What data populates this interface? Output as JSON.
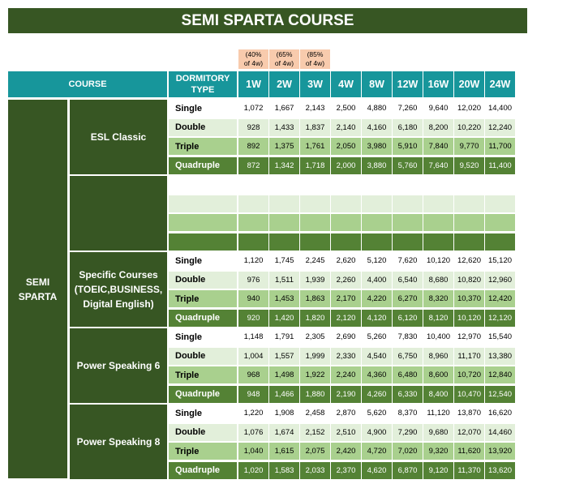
{
  "title": "SEMI SPARTA COURSE",
  "notes": [
    {
      "line1": "(40%",
      "line2": "of 4w)"
    },
    {
      "line1": "(65%",
      "line2": "of 4w)"
    },
    {
      "line1": "(85%",
      "line2": "of 4w)"
    }
  ],
  "header": {
    "course": "COURSE",
    "dormitory_line1": "DORMITORY",
    "dormitory_line2": "TYPE",
    "weeks": [
      "1W",
      "2W",
      "3W",
      "4W",
      "8W",
      "12W",
      "16W",
      "20W",
      "24W"
    ]
  },
  "main_course_line1": "SEMI",
  "main_course_line2": "SPARTA",
  "groups": [
    {
      "name_lines": [
        "ESL Classic"
      ],
      "rows": [
        {
          "type": "Single",
          "prices": [
            "1,072",
            "1,667",
            "2,143",
            "2,500",
            "4,880",
            "7,260",
            "9,640",
            "12,020",
            "14,400"
          ]
        },
        {
          "type": "Double",
          "prices": [
            "928",
            "1,433",
            "1,837",
            "2,140",
            "4,160",
            "6,180",
            "8,200",
            "10,220",
            "12,240"
          ]
        },
        {
          "type": "Triple",
          "prices": [
            "892",
            "1,375",
            "1,761",
            "2,050",
            "3,980",
            "5,910",
            "7,840",
            "9,770",
            "11,700"
          ]
        },
        {
          "type": "Quadruple",
          "prices": [
            "872",
            "1,342",
            "1,718",
            "2,000",
            "3,880",
            "5,760",
            "7,640",
            "9,520",
            "11,400"
          ]
        }
      ]
    },
    {
      "name_lines": [],
      "rows": [
        {
          "type": "",
          "prices": [
            "",
            "",
            "",
            "",
            "",
            "",
            "",
            "",
            ""
          ]
        },
        {
          "type": "",
          "prices": [
            "",
            "",
            "",
            "",
            "",
            "",
            "",
            "",
            ""
          ]
        },
        {
          "type": "",
          "prices": [
            "",
            "",
            "",
            "",
            "",
            "",
            "",
            "",
            ""
          ]
        },
        {
          "type": "",
          "prices": [
            "",
            "",
            "",
            "",
            "",
            "",
            "",
            "",
            ""
          ]
        }
      ]
    },
    {
      "name_lines": [
        "Specific Courses",
        "(TOEIC,BUSINESS,",
        "Digital English)"
      ],
      "rows": [
        {
          "type": "Single",
          "prices": [
            "1,120",
            "1,745",
            "2,245",
            "2,620",
            "5,120",
            "7,620",
            "10,120",
            "12,620",
            "15,120"
          ]
        },
        {
          "type": "Double",
          "prices": [
            "976",
            "1,511",
            "1,939",
            "2,260",
            "4,400",
            "6,540",
            "8,680",
            "10,820",
            "12,960"
          ]
        },
        {
          "type": "Triple",
          "prices": [
            "940",
            "1,453",
            "1,863",
            "2,170",
            "4,220",
            "6,270",
            "8,320",
            "10,370",
            "12,420"
          ]
        },
        {
          "type": "Quadruple",
          "prices": [
            "920",
            "1,420",
            "1,820",
            "2,120",
            "4,120",
            "6,120",
            "8,120",
            "10,120",
            "12,120"
          ]
        }
      ]
    },
    {
      "name_lines": [
        "Power Speaking 6"
      ],
      "rows": [
        {
          "type": "Single",
          "prices": [
            "1,148",
            "1,791",
            "2,305",
            "2,690",
            "5,260",
            "7,830",
            "10,400",
            "12,970",
            "15,540"
          ]
        },
        {
          "type": "Double",
          "prices": [
            "1,004",
            "1,557",
            "1,999",
            "2,330",
            "4,540",
            "6,750",
            "8,960",
            "11,170",
            "13,380"
          ]
        },
        {
          "type": "Triple",
          "prices": [
            "968",
            "1,498",
            "1,922",
            "2,240",
            "4,360",
            "6,480",
            "8,600",
            "10,720",
            "12,840"
          ]
        },
        {
          "type": "Quadruple",
          "prices": [
            "948",
            "1,466",
            "1,880",
            "2,190",
            "4,260",
            "6,330",
            "8,400",
            "10,470",
            "12,540"
          ]
        }
      ]
    },
    {
      "name_lines": [
        "Power Speaking 8"
      ],
      "rows": [
        {
          "type": "Single",
          "prices": [
            "1,220",
            "1,908",
            "2,458",
            "2,870",
            "5,620",
            "8,370",
            "11,120",
            "13,870",
            "16,620"
          ]
        },
        {
          "type": "Double",
          "prices": [
            "1,076",
            "1,674",
            "2,152",
            "2,510",
            "4,900",
            "7,290",
            "9,680",
            "12,070",
            "14,460"
          ]
        },
        {
          "type": "Triple",
          "prices": [
            "1,040",
            "1,615",
            "2,075",
            "2,420",
            "4,720",
            "7,020",
            "9,320",
            "11,620",
            "13,920"
          ]
        },
        {
          "type": "Quadruple",
          "prices": [
            "1,020",
            "1,583",
            "2,033",
            "2,370",
            "4,620",
            "6,870",
            "9,120",
            "11,370",
            "13,620"
          ]
        }
      ]
    }
  ]
}
